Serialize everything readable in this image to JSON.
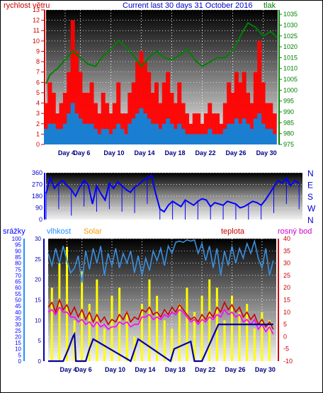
{
  "header": {
    "left_label": "rychlost větru",
    "title": "Current last 30 days 31 October 2016",
    "right_label": "tlak"
  },
  "colors": {
    "wind_gust": "#ff0000",
    "wind_avg": "#1a7fd0",
    "pressure": "#008000",
    "direction": "#0000ff",
    "rain": "#0000a0",
    "humidity": "#3a8fe0",
    "solar": "#ffff00",
    "temperature": "#cc0000",
    "dewpoint": "#ff00ff",
    "bottom_label_rain": "#0000ff",
    "bottom_label_humidity": "#1e90ff",
    "bottom_label_solar": "#ff9900",
    "bottom_label_temp": "#cc0000",
    "bottom_label_dew": "#cc00cc"
  },
  "bottom_header": {
    "rain_label": "srážky",
    "humidity_label": "vlhkost",
    "solar_label": "Solar",
    "temp_label": "teplota",
    "dew_label": "rosný bod"
  },
  "chart_data": [
    {
      "type": "line",
      "panel": "wind-pressure",
      "x_ticks": [
        "Day 4",
        "Day 6",
        "Day 10",
        "Day 14",
        "Day 18",
        "Day 22",
        "Day 26",
        "Day 30"
      ],
      "x_tick_days": [
        4,
        6,
        10,
        14,
        18,
        22,
        26,
        30
      ],
      "xlim": [
        1.5,
        31.9
      ],
      "y_left_label": "rychlost větru",
      "y_left_ticks": [
        0,
        1,
        2,
        3,
        4,
        5,
        6,
        7,
        8,
        9,
        10,
        11,
        12,
        13
      ],
      "ylim_left": [
        0,
        13
      ],
      "y_right_label": "tlak",
      "y_right_ticks": [
        975,
        980,
        985,
        990,
        995,
        1000,
        1005,
        1010,
        1015,
        1020,
        1025,
        1030,
        1035
      ],
      "ylim_right": [
        975,
        1037
      ],
      "series": [
        {
          "name": "tlak",
          "axis": "right",
          "x": [
            1.5,
            2,
            3,
            4,
            5,
            6,
            7,
            8,
            9,
            10,
            11,
            12,
            13,
            14,
            15,
            16,
            17,
            18,
            19,
            20,
            21,
            22,
            23,
            24,
            25,
            26,
            27,
            28,
            29,
            30,
            31,
            31.9
          ],
          "values": [
            1003,
            1007,
            1010,
            1014,
            1018,
            1015,
            1012,
            1011,
            1016,
            1019,
            1023,
            1020,
            1016,
            1011,
            1015,
            1018,
            1015,
            1014,
            1016,
            1019,
            1014,
            1011,
            1013,
            1015,
            1015,
            1018,
            1025,
            1031,
            1029,
            1025,
            1027,
            1024
          ]
        },
        {
          "name": "",
          "role": "gust",
          "axis": "left",
          "x": [
            1.5,
            2,
            2.5,
            3,
            3.5,
            4,
            4.5,
            5,
            5.5,
            6,
            6.5,
            7,
            7.5,
            8,
            8.5,
            9,
            9.5,
            10,
            10.5,
            11,
            11.5,
            12,
            12.5,
            13,
            13.5,
            14,
            14.5,
            15,
            15.5,
            16,
            16.5,
            17,
            17.5,
            18,
            18.5,
            19,
            19.5,
            20,
            20.5,
            21,
            21.5,
            22,
            22.5,
            23,
            23.5,
            24,
            24.5,
            25,
            25.5,
            26,
            26.5,
            27,
            27.5,
            28,
            28.5,
            29,
            29.5,
            30,
            30.5,
            31,
            31.5
          ],
          "values": [
            4,
            6,
            5,
            3,
            4,
            5,
            7,
            12,
            9,
            7,
            5,
            5,
            6,
            4,
            3,
            5,
            4,
            3,
            4,
            6,
            3,
            3,
            5,
            6,
            8,
            9,
            8,
            7,
            5,
            6,
            4,
            6,
            7,
            5,
            4,
            6,
            4,
            3,
            2,
            3,
            3,
            2,
            3,
            4,
            3,
            3,
            2,
            4,
            6,
            5,
            7,
            6,
            7,
            5,
            4,
            7,
            10,
            6,
            4,
            4,
            3
          ]
        },
        {
          "name": "",
          "role": "average",
          "axis": "left",
          "x": [
            1.5,
            2,
            2.5,
            3,
            3.5,
            4,
            4.5,
            5,
            5.5,
            6,
            6.5,
            7,
            7.5,
            8,
            8.5,
            9,
            9.5,
            10,
            10.5,
            11,
            11.5,
            12,
            12.5,
            13,
            13.5,
            14,
            14.5,
            15,
            15.5,
            16,
            16.5,
            17,
            17.5,
            18,
            18.5,
            19,
            19.5,
            20,
            20.5,
            21,
            21.5,
            22,
            22.5,
            23,
            23.5,
            24,
            24.5,
            25,
            25.5,
            26,
            26.5,
            27,
            27.5,
            28,
            28.5,
            29,
            29.5,
            30,
            30.5,
            31,
            31.5
          ],
          "values": [
            1.5,
            2,
            2,
            1.5,
            1.5,
            2,
            3,
            4,
            3,
            2.5,
            2,
            2,
            2,
            1.5,
            1,
            1.5,
            1.5,
            1,
            1.5,
            2,
            1.5,
            1,
            2,
            2.5,
            3,
            3.5,
            3,
            2.5,
            2,
            2,
            1.5,
            2,
            2.5,
            2,
            1.5,
            2,
            1.5,
            1,
            1,
            1,
            1,
            1,
            1,
            1.5,
            1,
            1,
            1,
            1.5,
            2,
            2,
            2.5,
            2,
            2.5,
            2,
            1.5,
            2.5,
            3,
            2,
            1.5,
            1.5,
            1
          ]
        }
      ]
    },
    {
      "type": "line",
      "panel": "wind-direction",
      "y_ticks": [
        0,
        90,
        180,
        270,
        360
      ],
      "ylim": [
        0,
        360
      ],
      "y_right_ticks": [
        "N",
        "W",
        "S",
        "E",
        "N"
      ],
      "xlim": [
        1.5,
        31.9
      ],
      "series": [
        {
          "name": "",
          "x": [
            1.5,
            2,
            2.5,
            3,
            3.5,
            4,
            4.5,
            5,
            5.5,
            6,
            6.5,
            7,
            7.5,
            8,
            8.5,
            9,
            9.5,
            10,
            10.5,
            11,
            11.5,
            12,
            12.5,
            13,
            13.5,
            14,
            14.5,
            15,
            15.5,
            16,
            16.5,
            17,
            17.5,
            18,
            18.5,
            19,
            19.5,
            20,
            20.5,
            21,
            21.5,
            22,
            22.5,
            23,
            23.5,
            24,
            24.5,
            25,
            25.5,
            26,
            26.5,
            27,
            27.5,
            28,
            28.5,
            29,
            29.5,
            30,
            30.5,
            31,
            31.5
          ],
          "values": [
            200,
            320,
            240,
            280,
            300,
            260,
            230,
            180,
            250,
            300,
            270,
            120,
            260,
            200,
            150,
            280,
            240,
            290,
            260,
            230,
            210,
            250,
            270,
            300,
            320,
            340,
            200,
            80,
            60,
            110,
            140,
            120,
            100,
            150,
            130,
            110,
            140,
            160,
            150,
            100,
            130,
            120,
            110,
            140,
            130,
            120,
            90,
            100,
            120,
            140,
            130,
            110,
            150,
            200,
            250,
            300,
            280,
            320,
            260,
            300,
            280
          ]
        }
      ]
    },
    {
      "type": "line",
      "panel": "rain-humidity-solar-temperature",
      "x_ticks": [
        "Day 4",
        "Day 6",
        "Day 10",
        "Day 14",
        "Day 18",
        "Day 22",
        "Day 26",
        "Day 30"
      ],
      "x_tick_days": [
        4,
        6,
        10,
        14,
        18,
        22,
        26,
        30
      ],
      "xlim": [
        1.5,
        31.9
      ],
      "y_rain_ticks": [
        0,
        5,
        10,
        15,
        20,
        25,
        30,
        35,
        40,
        45,
        50,
        55,
        60,
        65,
        70,
        75,
        80,
        85,
        90,
        95,
        100
      ],
      "y_humidity_ticks": [
        0,
        5,
        10,
        15,
        20,
        25,
        30
      ],
      "y_temp_ticks": [
        -10,
        -5,
        0,
        5,
        10,
        15,
        20,
        25,
        30,
        35,
        40
      ],
      "ylim_percent": [
        0,
        100
      ],
      "ylim_temp": [
        -10,
        40
      ],
      "series": [
        {
          "name": "vlhkost",
          "x": [
            1.5,
            2,
            2.5,
            3,
            3.5,
            4,
            4.5,
            5,
            5.5,
            6,
            6.5,
            7,
            7.5,
            8,
            8.5,
            9,
            9.5,
            10,
            10.5,
            11,
            11.5,
            12,
            12.5,
            13,
            13.5,
            14,
            14.5,
            15,
            15.5,
            16,
            16.5,
            17,
            17.5,
            18,
            18.5,
            19,
            19.5,
            20,
            20.5,
            21,
            21.5,
            22,
            22.5,
            23,
            23.5,
            24,
            24.5,
            25,
            25.5,
            26,
            26.5,
            27,
            27.5,
            28,
            28.5,
            29,
            29.5,
            30,
            30.5,
            31,
            31.5
          ],
          "values": [
            88,
            78,
            92,
            80,
            94,
            82,
            72,
            76,
            86,
            64,
            90,
            75,
            92,
            80,
            94,
            70,
            88,
            78,
            92,
            76,
            88,
            80,
            90,
            72,
            86,
            70,
            84,
            74,
            90,
            82,
            92,
            78,
            94,
            88,
            97,
            98,
            97,
            99,
            98,
            99,
            88,
            96,
            82,
            94,
            76,
            92,
            70,
            90,
            78,
            94,
            80,
            92,
            84,
            96,
            88,
            98,
            84,
            76,
            92,
            70,
            82
          ]
        },
        {
          "name": "teplota",
          "x": [
            1.5,
            2,
            2.5,
            3,
            3.5,
            4,
            4.5,
            5,
            5.5,
            6,
            6.5,
            7,
            7.5,
            8,
            8.5,
            9,
            9.5,
            10,
            10.5,
            11,
            11.5,
            12,
            12.5,
            13,
            13.5,
            14,
            14.5,
            15,
            15.5,
            16,
            16.5,
            17,
            17.5,
            18,
            18.5,
            19,
            19.5,
            20,
            20.5,
            21,
            21.5,
            22,
            22.5,
            23,
            23.5,
            24,
            24.5,
            25,
            25.5,
            26,
            26.5,
            27,
            27.5,
            28,
            28.5,
            29,
            29.5,
            30,
            30.5,
            31,
            31.5
          ],
          "values": [
            12,
            14,
            10,
            15,
            11,
            13,
            9,
            12,
            8,
            11,
            7,
            10,
            6,
            9,
            6,
            8,
            5,
            7,
            6,
            9,
            7,
            10,
            6,
            8,
            7,
            11,
            10,
            12,
            9,
            10,
            8,
            11,
            9,
            12,
            10,
            13,
            11,
            9,
            7,
            8,
            6,
            9,
            7,
            10,
            8,
            12,
            10,
            14,
            11,
            13,
            10,
            12,
            8,
            10,
            7,
            9,
            5,
            7,
            4,
            6,
            3
          ]
        },
        {
          "name": "rosný bod",
          "x": [
            1.5,
            2,
            2.5,
            3,
            3.5,
            4,
            4.5,
            5,
            5.5,
            6,
            6.5,
            7,
            7.5,
            8,
            8.5,
            9,
            9.5,
            10,
            10.5,
            11,
            11.5,
            12,
            12.5,
            13,
            13.5,
            14,
            14.5,
            15,
            15.5,
            16,
            16.5,
            17,
            17.5,
            18,
            18.5,
            19,
            19.5,
            20,
            20.5,
            21,
            21.5,
            22,
            22.5,
            23,
            23.5,
            24,
            24.5,
            25,
            25.5,
            26,
            26.5,
            27,
            27.5,
            28,
            28.5,
            29,
            29.5,
            30,
            30.5,
            31,
            31.5
          ],
          "values": [
            10,
            11,
            9,
            12,
            10,
            10,
            8,
            8,
            6,
            7,
            5,
            6,
            4,
            6,
            4,
            5,
            3,
            4,
            4,
            6,
            5,
            6,
            4,
            5,
            5,
            8,
            8,
            9,
            7,
            8,
            7,
            9,
            8,
            10,
            9,
            11,
            10,
            8,
            6,
            7,
            5,
            7,
            6,
            8,
            7,
            9,
            8,
            11,
            9,
            10,
            8,
            9,
            6,
            7,
            5,
            7,
            3,
            5,
            2,
            4,
            1
          ]
        },
        {
          "name": "Solar",
          "x": [
            2,
            3,
            4,
            5,
            6,
            7,
            8,
            9,
            10,
            11,
            12,
            13,
            14,
            15,
            16,
            17,
            18,
            19,
            20,
            21,
            22,
            23,
            24,
            25,
            26,
            27,
            28,
            29,
            30,
            31
          ],
          "values": [
            18,
            24,
            28,
            10,
            22,
            14,
            20,
            8,
            16,
            18,
            12,
            6,
            14,
            20,
            16,
            10,
            8,
            14,
            18,
            12,
            16,
            20,
            18,
            10,
            16,
            12,
            14,
            8,
            12,
            10
          ]
        },
        {
          "name": "srážky",
          "x": [
            1.5,
            3.5,
            4.2,
            4.8,
            5.0,
            5.2,
            6.5,
            7,
            7.5,
            12.5,
            13.5,
            17.8,
            18.3,
            20.5,
            21,
            22,
            24.2,
            25,
            26,
            27.5,
            31.5
          ],
          "values": [
            0,
            0,
            10,
            20,
            22,
            0,
            0,
            10,
            18,
            0,
            18,
            0,
            10,
            16,
            0,
            0,
            30,
            30,
            30,
            30,
            30
          ]
        }
      ]
    }
  ]
}
